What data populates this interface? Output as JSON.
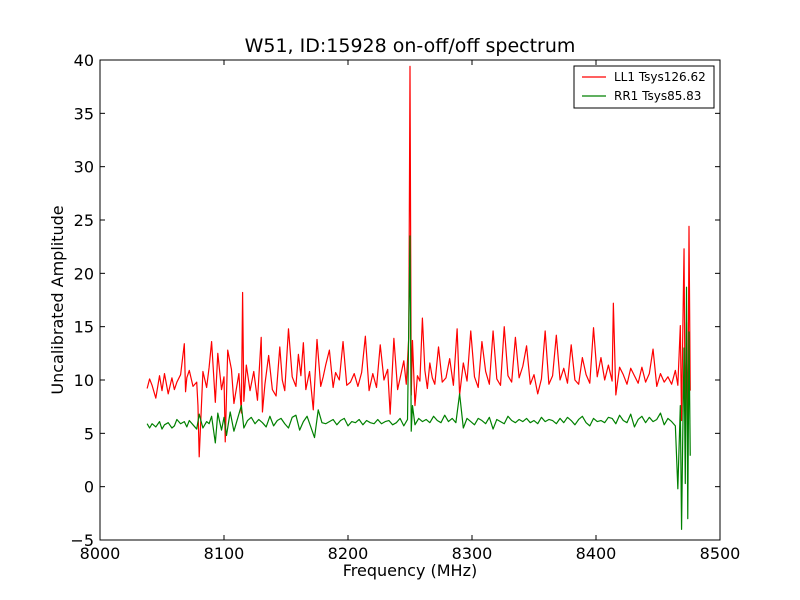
{
  "chart_data": {
    "type": "line",
    "title": "W51, ID:15928 on-off/off spectrum",
    "xlabel": "Frequency (MHz)",
    "ylabel": "Uncalibrated Amplitude",
    "xlim": [
      8000,
      8500
    ],
    "ylim": [
      -5,
      40
    ],
    "xticks": [
      8000,
      8100,
      8200,
      8300,
      8400,
      8500
    ],
    "yticks": [
      -5,
      0,
      5,
      10,
      15,
      20,
      25,
      30,
      35,
      40
    ],
    "grid": false,
    "legend_position": "top-right",
    "series": [
      {
        "name": "LL1 Tsys126.62",
        "color": "#ff0000",
        "x": [
          8038,
          8040,
          8042,
          8045,
          8048,
          8050,
          8052,
          8055,
          8058,
          8060,
          8062,
          8065,
          8068,
          8069,
          8070,
          8072,
          8075,
          8078,
          8079,
          8080,
          8083,
          8086,
          8088,
          8090,
          8093,
          8095,
          8098,
          8100,
          8101,
          8103,
          8106,
          8108,
          8110,
          8112,
          8114,
          8115,
          8116,
          8118,
          8121,
          8124,
          8127,
          8130,
          8131,
          8133,
          8136,
          8139,
          8142,
          8145,
          8147,
          8149,
          8152,
          8155,
          8158,
          8160,
          8162,
          8164,
          8166,
          8169,
          8172,
          8175,
          8178,
          8180,
          8182,
          8185,
          8188,
          8190,
          8193,
          8196,
          8199,
          8202,
          8205,
          8208,
          8211,
          8214,
          8217,
          8220,
          8223,
          8226,
          8229,
          8232,
          8234,
          8237,
          8240,
          8243,
          8245,
          8247,
          8249,
          8250,
          8251,
          8252,
          8254,
          8256,
          8258,
          8260,
          8262,
          8264,
          8266,
          8268,
          8270,
          8273,
          8276,
          8279,
          8282,
          8285,
          8288,
          8290,
          8293,
          8296,
          8299,
          8302,
          8305,
          8308,
          8311,
          8314,
          8317,
          8320,
          8323,
          8326,
          8329,
          8332,
          8335,
          8338,
          8341,
          8344,
          8347,
          8350,
          8353,
          8356,
          8359,
          8362,
          8365,
          8368,
          8371,
          8374,
          8377,
          8380,
          8383,
          8386,
          8389,
          8392,
          8395,
          8398,
          8401,
          8404,
          8407,
          8410,
          8413,
          8414,
          8416,
          8419,
          8422,
          8425,
          8428,
          8431,
          8434,
          8437,
          8440,
          8443,
          8446,
          8449,
          8452,
          8455,
          8458,
          8461,
          8464,
          8466,
          8468,
          8469,
          8470,
          8471,
          8472,
          8473,
          8474,
          8475,
          8476
        ],
        "values": [
          9.2,
          10.1,
          9.5,
          8.3,
          10.4,
          9.0,
          10.6,
          8.7,
          10.2,
          9.1,
          9.8,
          10.5,
          13.4,
          8.9,
          10.2,
          10.9,
          9.4,
          9.8,
          7.6,
          2.8,
          10.8,
          9.3,
          11.2,
          13.6,
          7.9,
          12.5,
          9.1,
          10.3,
          4.2,
          12.8,
          11.0,
          7.8,
          9.2,
          10.6,
          6.9,
          18.2,
          8.0,
          11.4,
          9.0,
          10.8,
          8.1,
          14.0,
          7.0,
          9.6,
          12.3,
          9.1,
          8.5,
          13.1,
          10.0,
          9.0,
          14.8,
          10.3,
          9.4,
          12.4,
          10.4,
          13.5,
          9.1,
          10.8,
          7.2,
          13.8,
          9.4,
          10.3,
          11.4,
          12.8,
          9.3,
          10.7,
          10.0,
          13.6,
          9.5,
          9.8,
          10.6,
          9.4,
          10.7,
          14.1,
          9.0,
          10.6,
          9.3,
          13.3,
          10.0,
          11.0,
          6.8,
          13.9,
          9.1,
          10.7,
          11.8,
          9.6,
          14.0,
          39.4,
          8.6,
          13.7,
          7.6,
          10.4,
          9.9,
          15.8,
          10.9,
          9.2,
          11.6,
          10.2,
          9.6,
          13.1,
          9.8,
          10.2,
          12.0,
          9.5,
          14.8,
          8.6,
          11.6,
          9.9,
          14.6,
          10.3,
          9.3,
          13.6,
          10.8,
          9.6,
          14.6,
          10.1,
          9.5,
          15.0,
          10.4,
          9.8,
          14.0,
          10.2,
          11.3,
          13.2,
          9.6,
          10.5,
          8.7,
          10.1,
          14.6,
          9.6,
          10.4,
          14.2,
          10.0,
          11.1,
          9.7,
          13.3,
          10.0,
          9.6,
          12.1,
          10.5,
          9.7,
          14.9,
          10.3,
          12.1,
          10.0,
          11.4,
          9.9,
          17.2,
          8.6,
          11.2,
          10.5,
          9.6,
          11.1,
          10.4,
          9.7,
          11.2,
          9.8,
          10.6,
          12.9,
          9.4,
          10.6,
          9.8,
          10.3,
          9.6,
          10.9,
          9.5,
          15.1,
          6.2,
          14.6,
          22.3,
          4.8,
          15.4,
          3.1,
          24.4,
          9.0
        ]
      },
      {
        "name": "RR1 Tsys85.83",
        "color": "#008000",
        "x": [
          8038,
          8040,
          8042,
          8045,
          8048,
          8050,
          8052,
          8055,
          8058,
          8060,
          8062,
          8065,
          8068,
          8070,
          8072,
          8075,
          8078,
          8080,
          8083,
          8086,
          8088,
          8090,
          8093,
          8095,
          8098,
          8100,
          8102,
          8105,
          8108,
          8111,
          8114,
          8116,
          8119,
          8122,
          8125,
          8128,
          8131,
          8134,
          8137,
          8140,
          8143,
          8146,
          8149,
          8152,
          8155,
          8158,
          8161,
          8164,
          8167,
          8170,
          8173,
          8176,
          8179,
          8182,
          8185,
          8188,
          8191,
          8194,
          8197,
          8200,
          8203,
          8206,
          8209,
          8212,
          8215,
          8218,
          8221,
          8224,
          8227,
          8230,
          8233,
          8236,
          8239,
          8242,
          8245,
          8248,
          8250,
          8251,
          8252,
          8254,
          8257,
          8260,
          8263,
          8266,
          8269,
          8272,
          8275,
          8278,
          8281,
          8284,
          8287,
          8290,
          8293,
          8296,
          8299,
          8302,
          8305,
          8308,
          8311,
          8314,
          8317,
          8320,
          8323,
          8326,
          8329,
          8332,
          8335,
          8338,
          8341,
          8344,
          8347,
          8350,
          8353,
          8356,
          8359,
          8362,
          8365,
          8368,
          8371,
          8374,
          8377,
          8380,
          8383,
          8386,
          8389,
          8392,
          8395,
          8398,
          8401,
          8404,
          8407,
          8410,
          8413,
          8416,
          8419,
          8422,
          8425,
          8428,
          8431,
          8434,
          8437,
          8440,
          8443,
          8446,
          8449,
          8452,
          8455,
          8458,
          8461,
          8464,
          8466,
          8468,
          8469,
          8470,
          8471,
          8472,
          8473,
          8474,
          8475,
          8476
        ],
        "values": [
          5.9,
          5.5,
          5.9,
          5.6,
          6.1,
          5.4,
          5.8,
          6.0,
          5.5,
          5.7,
          6.3,
          5.9,
          6.1,
          5.6,
          6.2,
          5.8,
          5.4,
          6.8,
          5.5,
          6.1,
          5.9,
          6.6,
          4.1,
          6.9,
          5.3,
          6.5,
          4.8,
          7.0,
          5.2,
          6.4,
          7.6,
          5.5,
          6.2,
          6.5,
          5.9,
          6.3,
          6.0,
          5.6,
          6.6,
          5.7,
          6.2,
          6.4,
          5.9,
          5.5,
          6.5,
          6.7,
          5.3,
          6.1,
          6.6,
          5.6,
          4.6,
          7.2,
          6.0,
          5.9,
          6.1,
          6.3,
          5.8,
          6.2,
          6.4,
          5.7,
          6.1,
          6.0,
          6.3,
          5.8,
          6.2,
          6.0,
          5.9,
          6.3,
          5.9,
          6.1,
          6.2,
          5.8,
          6.0,
          6.4,
          5.7,
          6.3,
          23.5,
          5.2,
          7.6,
          5.8,
          6.4,
          6.1,
          6.3,
          6.0,
          6.6,
          6.2,
          6.0,
          6.7,
          6.1,
          6.4,
          6.0,
          8.7,
          5.5,
          6.4,
          6.1,
          5.8,
          6.4,
          6.2,
          5.9,
          6.5,
          5.4,
          6.3,
          6.1,
          5.9,
          6.6,
          6.2,
          6.0,
          6.3,
          6.1,
          6.4,
          6.0,
          6.2,
          5.9,
          6.5,
          6.1,
          6.3,
          6.2,
          5.9,
          6.4,
          6.0,
          6.5,
          6.2,
          5.8,
          6.3,
          6.6,
          6.0,
          5.7,
          6.4,
          6.1,
          6.2,
          6.0,
          6.5,
          6.4,
          5.9,
          6.7,
          6.2,
          6.0,
          6.8,
          5.6,
          6.3,
          6.6,
          6.0,
          6.5,
          6.1,
          6.3,
          6.9,
          5.8,
          6.4,
          6.1,
          5.7,
          -0.2,
          7.6,
          -4.0,
          5.1,
          13.0,
          0.3,
          18.7,
          -3.0,
          14.5,
          2.9
        ]
      }
    ]
  }
}
